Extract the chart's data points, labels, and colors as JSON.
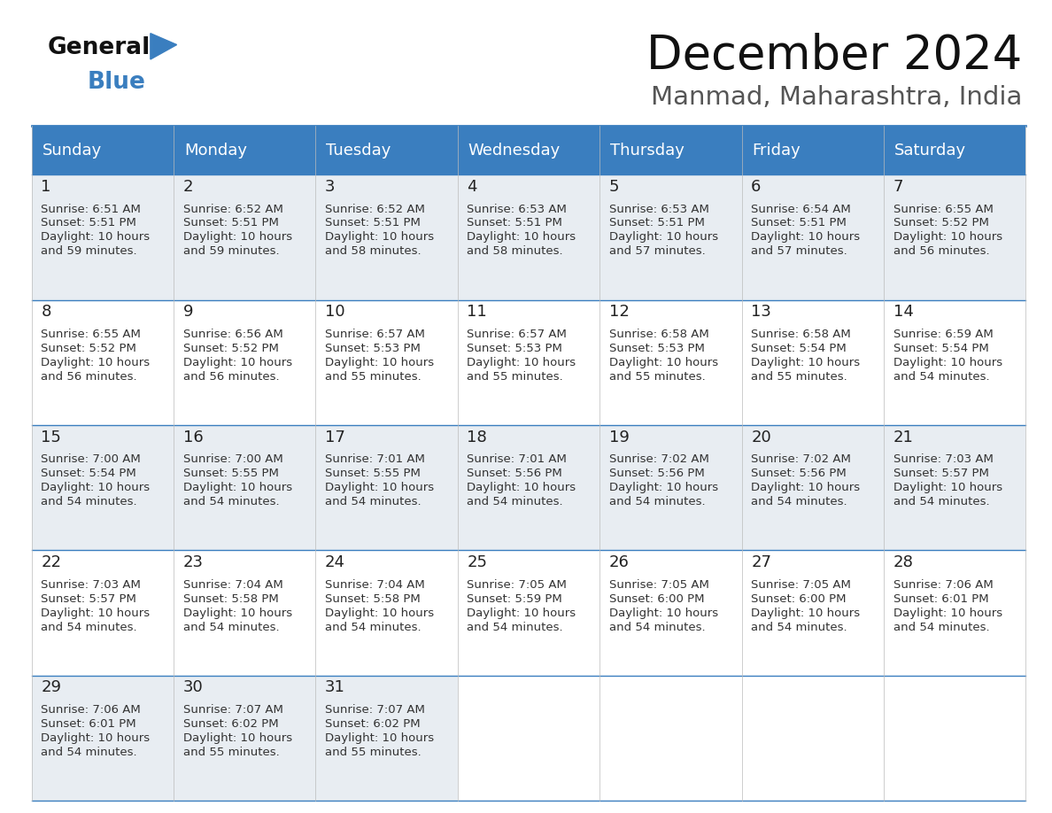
{
  "title": "December 2024",
  "subtitle": "Manmad, Maharashtra, India",
  "header_color": "#3a7ebf",
  "header_text_color": "#ffffff",
  "weekdays": [
    "Sunday",
    "Monday",
    "Tuesday",
    "Wednesday",
    "Thursday",
    "Friday",
    "Saturday"
  ],
  "bg_color": "#ffffff",
  "cell_bg_even": "#e8edf2",
  "cell_bg_odd": "#ffffff",
  "border_color": "#3a7ebf",
  "day_number_color": "#222222",
  "cell_text_color": "#333333",
  "days": [
    {
      "day": 1,
      "col": 0,
      "row": 0,
      "sunrise": "6:51 AM",
      "sunset": "5:51 PM",
      "daylight_hours": 10,
      "daylight_minutes": 59
    },
    {
      "day": 2,
      "col": 1,
      "row": 0,
      "sunrise": "6:52 AM",
      "sunset": "5:51 PM",
      "daylight_hours": 10,
      "daylight_minutes": 59
    },
    {
      "day": 3,
      "col": 2,
      "row": 0,
      "sunrise": "6:52 AM",
      "sunset": "5:51 PM",
      "daylight_hours": 10,
      "daylight_minutes": 58
    },
    {
      "day": 4,
      "col": 3,
      "row": 0,
      "sunrise": "6:53 AM",
      "sunset": "5:51 PM",
      "daylight_hours": 10,
      "daylight_minutes": 58
    },
    {
      "day": 5,
      "col": 4,
      "row": 0,
      "sunrise": "6:53 AM",
      "sunset": "5:51 PM",
      "daylight_hours": 10,
      "daylight_minutes": 57
    },
    {
      "day": 6,
      "col": 5,
      "row": 0,
      "sunrise": "6:54 AM",
      "sunset": "5:51 PM",
      "daylight_hours": 10,
      "daylight_minutes": 57
    },
    {
      "day": 7,
      "col": 6,
      "row": 0,
      "sunrise": "6:55 AM",
      "sunset": "5:52 PM",
      "daylight_hours": 10,
      "daylight_minutes": 56
    },
    {
      "day": 8,
      "col": 0,
      "row": 1,
      "sunrise": "6:55 AM",
      "sunset": "5:52 PM",
      "daylight_hours": 10,
      "daylight_minutes": 56
    },
    {
      "day": 9,
      "col": 1,
      "row": 1,
      "sunrise": "6:56 AM",
      "sunset": "5:52 PM",
      "daylight_hours": 10,
      "daylight_minutes": 56
    },
    {
      "day": 10,
      "col": 2,
      "row": 1,
      "sunrise": "6:57 AM",
      "sunset": "5:53 PM",
      "daylight_hours": 10,
      "daylight_minutes": 55
    },
    {
      "day": 11,
      "col": 3,
      "row": 1,
      "sunrise": "6:57 AM",
      "sunset": "5:53 PM",
      "daylight_hours": 10,
      "daylight_minutes": 55
    },
    {
      "day": 12,
      "col": 4,
      "row": 1,
      "sunrise": "6:58 AM",
      "sunset": "5:53 PM",
      "daylight_hours": 10,
      "daylight_minutes": 55
    },
    {
      "day": 13,
      "col": 5,
      "row": 1,
      "sunrise": "6:58 AM",
      "sunset": "5:54 PM",
      "daylight_hours": 10,
      "daylight_minutes": 55
    },
    {
      "day": 14,
      "col": 6,
      "row": 1,
      "sunrise": "6:59 AM",
      "sunset": "5:54 PM",
      "daylight_hours": 10,
      "daylight_minutes": 54
    },
    {
      "day": 15,
      "col": 0,
      "row": 2,
      "sunrise": "7:00 AM",
      "sunset": "5:54 PM",
      "daylight_hours": 10,
      "daylight_minutes": 54
    },
    {
      "day": 16,
      "col": 1,
      "row": 2,
      "sunrise": "7:00 AM",
      "sunset": "5:55 PM",
      "daylight_hours": 10,
      "daylight_minutes": 54
    },
    {
      "day": 17,
      "col": 2,
      "row": 2,
      "sunrise": "7:01 AM",
      "sunset": "5:55 PM",
      "daylight_hours": 10,
      "daylight_minutes": 54
    },
    {
      "day": 18,
      "col": 3,
      "row": 2,
      "sunrise": "7:01 AM",
      "sunset": "5:56 PM",
      "daylight_hours": 10,
      "daylight_minutes": 54
    },
    {
      "day": 19,
      "col": 4,
      "row": 2,
      "sunrise": "7:02 AM",
      "sunset": "5:56 PM",
      "daylight_hours": 10,
      "daylight_minutes": 54
    },
    {
      "day": 20,
      "col": 5,
      "row": 2,
      "sunrise": "7:02 AM",
      "sunset": "5:56 PM",
      "daylight_hours": 10,
      "daylight_minutes": 54
    },
    {
      "day": 21,
      "col": 6,
      "row": 2,
      "sunrise": "7:03 AM",
      "sunset": "5:57 PM",
      "daylight_hours": 10,
      "daylight_minutes": 54
    },
    {
      "day": 22,
      "col": 0,
      "row": 3,
      "sunrise": "7:03 AM",
      "sunset": "5:57 PM",
      "daylight_hours": 10,
      "daylight_minutes": 54
    },
    {
      "day": 23,
      "col": 1,
      "row": 3,
      "sunrise": "7:04 AM",
      "sunset": "5:58 PM",
      "daylight_hours": 10,
      "daylight_minutes": 54
    },
    {
      "day": 24,
      "col": 2,
      "row": 3,
      "sunrise": "7:04 AM",
      "sunset": "5:58 PM",
      "daylight_hours": 10,
      "daylight_minutes": 54
    },
    {
      "day": 25,
      "col": 3,
      "row": 3,
      "sunrise": "7:05 AM",
      "sunset": "5:59 PM",
      "daylight_hours": 10,
      "daylight_minutes": 54
    },
    {
      "day": 26,
      "col": 4,
      "row": 3,
      "sunrise": "7:05 AM",
      "sunset": "6:00 PM",
      "daylight_hours": 10,
      "daylight_minutes": 54
    },
    {
      "day": 27,
      "col": 5,
      "row": 3,
      "sunrise": "7:05 AM",
      "sunset": "6:00 PM",
      "daylight_hours": 10,
      "daylight_minutes": 54
    },
    {
      "day": 28,
      "col": 6,
      "row": 3,
      "sunrise": "7:06 AM",
      "sunset": "6:01 PM",
      "daylight_hours": 10,
      "daylight_minutes": 54
    },
    {
      "day": 29,
      "col": 0,
      "row": 4,
      "sunrise": "7:06 AM",
      "sunset": "6:01 PM",
      "daylight_hours": 10,
      "daylight_minutes": 54
    },
    {
      "day": 30,
      "col": 1,
      "row": 4,
      "sunrise": "7:07 AM",
      "sunset": "6:02 PM",
      "daylight_hours": 10,
      "daylight_minutes": 55
    },
    {
      "day": 31,
      "col": 2,
      "row": 4,
      "sunrise": "7:07 AM",
      "sunset": "6:02 PM",
      "daylight_hours": 10,
      "daylight_minutes": 55
    }
  ],
  "logo_general_color": "#111111",
  "logo_blue_color": "#3a7ebf",
  "title_fontsize": 38,
  "subtitle_fontsize": 21,
  "header_fontsize": 13,
  "day_num_fontsize": 13,
  "cell_text_fontsize": 9.5
}
